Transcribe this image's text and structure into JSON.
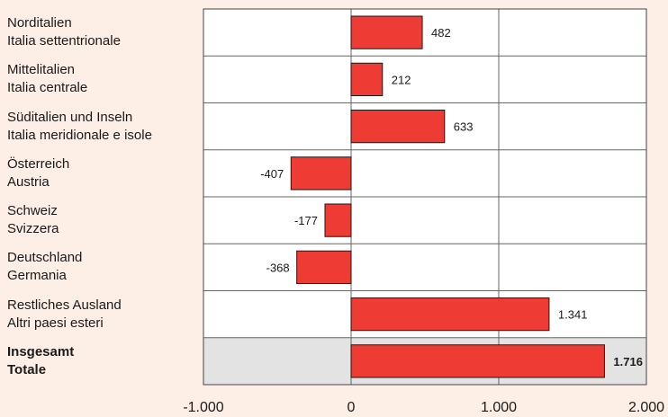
{
  "chart_data": {
    "type": "bar",
    "orientation": "horizontal",
    "categories": [
      {
        "line1": "Norditalien",
        "line2": "Italia settentrionale",
        "bold": false
      },
      {
        "line1": "Mittelitalien",
        "line2": "Italia centrale",
        "bold": false
      },
      {
        "line1": "Süditalien und Inseln",
        "line2": "Italia meridionale e isole",
        "bold": false
      },
      {
        "line1": "Österreich",
        "line2": "Austria",
        "bold": false
      },
      {
        "line1": "Schweiz",
        "line2": "Svizzera",
        "bold": false
      },
      {
        "line1": "Deutschland",
        "line2": "Germania",
        "bold": false
      },
      {
        "line1": "Restliches Ausland",
        "line2": "Altri paesi esteri",
        "bold": false
      },
      {
        "line1": "Insgesamt",
        "line2": "Totale",
        "bold": true
      }
    ],
    "values": [
      482,
      212,
      633,
      -407,
      -177,
      -368,
      1341,
      1716
    ],
    "value_labels": [
      "482",
      "212",
      "633",
      "-407",
      "-177",
      "-368",
      "1.341",
      "1.716"
    ],
    "xlim": [
      -1000,
      2000
    ],
    "xticks": [
      -1000,
      0,
      1000,
      2000
    ],
    "xtick_labels": [
      "-1.000",
      "0",
      "1.000",
      "2.000"
    ],
    "grid": true,
    "highlight_last_row": true,
    "colors": {
      "bar": "#ee3b33",
      "bar_stroke": "#1a1a1a",
      "plot_background": "#ffffff",
      "highlight_row": "#e3e3e3",
      "grid": "#666666",
      "page_background": "#fdeee6"
    }
  }
}
